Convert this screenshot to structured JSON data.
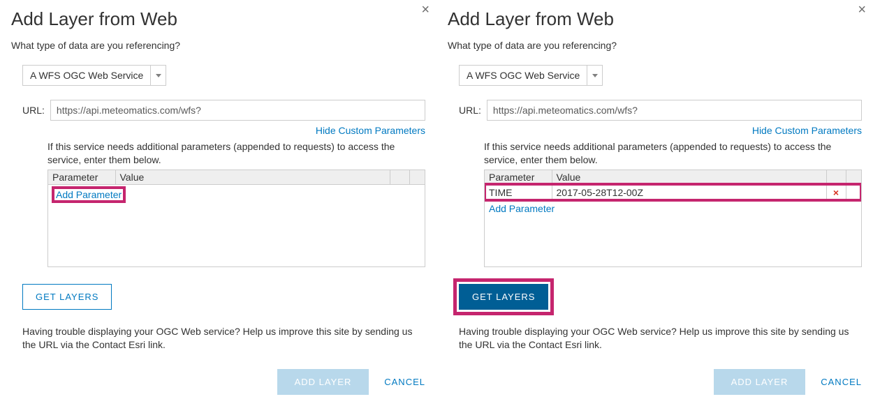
{
  "palette": {
    "link_color": "#0079c1",
    "outline_brand": "#c5256e",
    "primary_button_bg": "#005e95",
    "disabled_button_bg": "#b8d8eb",
    "border_gray": "#cccccc",
    "header_bg": "#efefef",
    "text": "#323232",
    "danger": "#d83020"
  },
  "left": {
    "title": "Add Layer from Web",
    "subq": "What type of data are you referencing?",
    "service_type": "A WFS OGC Web Service",
    "url_label": "URL:",
    "url_value": "https://api.meteomatics.com/wfs?",
    "hide_params_link": "Hide Custom Parameters",
    "help_text": "If this service needs additional parameters (appended to requests) to access the service, enter them below.",
    "table": {
      "col_param": "Parameter",
      "col_value": "Value",
      "rows": []
    },
    "add_param_label": "Add Parameter",
    "get_layers_label": "GET LAYERS",
    "get_layers_style": "outline",
    "trouble_text": "Having trouble displaying your OGC Web service? Help us improve this site by sending us the URL via the Contact Esri link.",
    "add_layer_label": "ADD LAYER",
    "cancel_label": "CANCEL",
    "highlight": "add_parameter"
  },
  "right": {
    "title": "Add Layer from Web",
    "subq": "What type of data are you referencing?",
    "service_type": "A WFS OGC Web Service",
    "url_label": "URL:",
    "url_value": "https://api.meteomatics.com/wfs?",
    "hide_params_link": "Hide Custom Parameters",
    "help_text": "If this service needs additional parameters (appended to requests) to access the service, enter them below.",
    "table": {
      "col_param": "Parameter",
      "col_value": "Value",
      "rows": [
        {
          "param": "TIME",
          "value": "2017-05-28T12-00Z"
        }
      ]
    },
    "add_param_label": "Add Parameter",
    "get_layers_label": "GET LAYERS",
    "get_layers_style": "solid",
    "trouble_text": "Having trouble displaying your OGC Web service? Help us improve this site by sending us the URL via the Contact Esri link.",
    "add_layer_label": "ADD LAYER",
    "cancel_label": "CANCEL",
    "highlight": "row_and_getlayers"
  }
}
